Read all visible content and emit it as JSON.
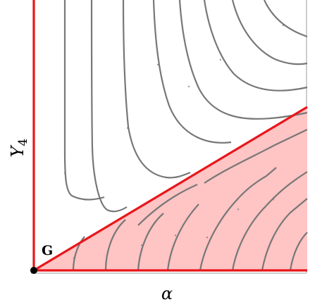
{
  "figure": {
    "x_axis_label": "α",
    "y_axis_label": "Y",
    "y_axis_subscript": "4",
    "point_label": "G"
  },
  "colors": {
    "background": "#ffffff",
    "frame": "#bdbdbd",
    "flow": "#777777",
    "separatrix": "#e8161b",
    "region_fill": "#ffc4c4",
    "point": "#000000"
  }
}
